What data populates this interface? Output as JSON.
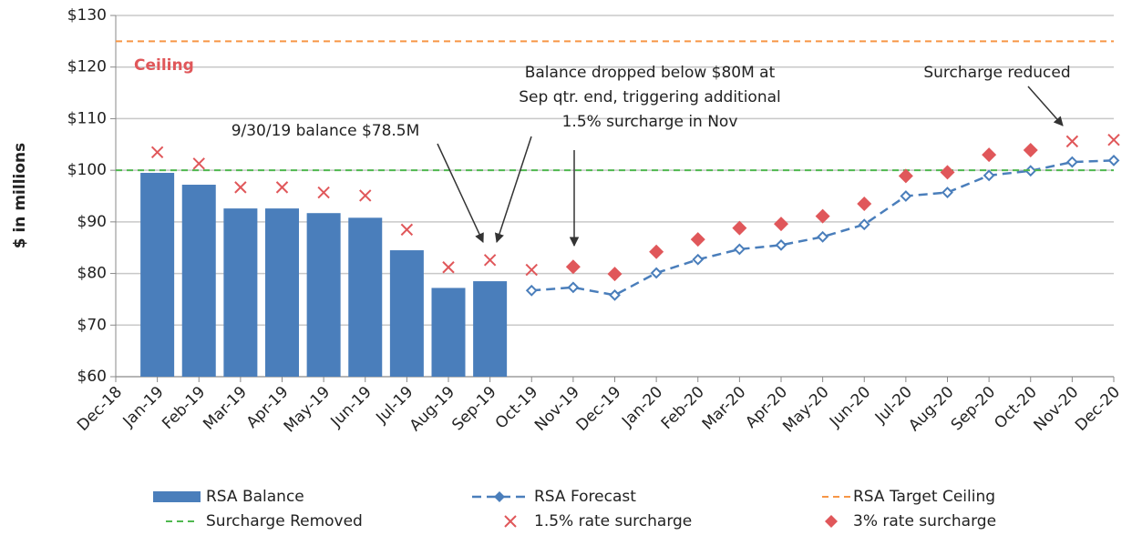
{
  "chart_data": {
    "type": "combo",
    "y_label": "$ in millions",
    "categories": [
      "Dec-18",
      "Jan-19",
      "Feb-19",
      "Mar-19",
      "Apr-19",
      "May-19",
      "Jun-19",
      "Jul-19",
      "Aug-19",
      "Sep-19",
      "Oct-19",
      "Nov-19",
      "Dec-19",
      "Jan-20",
      "Feb-20",
      "Mar-20",
      "Apr-20",
      "May-20",
      "Jun-20",
      "Jul-20",
      "Aug-20",
      "Sep-20",
      "Oct-20",
      "Nov-20",
      "Dec-20"
    ],
    "ylim": [
      60,
      130
    ],
    "yticks": [
      {
        "value": 60,
        "label": "$60"
      },
      {
        "value": 70,
        "label": "$70"
      },
      {
        "value": 80,
        "label": "$80"
      },
      {
        "value": 90,
        "label": "$90"
      },
      {
        "value": 100,
        "label": "$100"
      },
      {
        "value": 110,
        "label": "$110"
      },
      {
        "value": 120,
        "label": "$120"
      },
      {
        "value": 130,
        "label": "$130"
      }
    ],
    "grid": true,
    "series": [
      {
        "name": "RSA Balance",
        "kind": "bar",
        "color": "#4a7ebb",
        "values": [
          null,
          99.5,
          97.2,
          92.6,
          92.6,
          91.7,
          90.8,
          84.5,
          77.2,
          78.5,
          null,
          null,
          null,
          null,
          null,
          null,
          null,
          null,
          null,
          null,
          null,
          null,
          null,
          null,
          null
        ]
      },
      {
        "name": "RSA Forecast",
        "kind": "line",
        "color": "#4a7ebb",
        "values": [
          null,
          null,
          null,
          null,
          null,
          null,
          null,
          null,
          null,
          null,
          76.7,
          77.3,
          75.8,
          80.1,
          82.7,
          84.7,
          85.5,
          87.1,
          89.5,
          95.0,
          95.7,
          99.0,
          99.9,
          101.6,
          101.9
        ]
      },
      {
        "name": "RSA Target Ceiling",
        "kind": "hline",
        "color": "#f79646",
        "value": 125
      },
      {
        "name": "Surcharge Removed",
        "kind": "hline",
        "color": "#4fb84f",
        "value": 100
      },
      {
        "name": "1.5% rate surcharge",
        "kind": "cross",
        "color": "#e0575a",
        "values": [
          null,
          103.5,
          101.3,
          96.7,
          96.7,
          95.7,
          95.1,
          88.5,
          81.2,
          82.6,
          80.7,
          null,
          null,
          null,
          null,
          null,
          null,
          null,
          null,
          null,
          null,
          null,
          null,
          105.6,
          105.9
        ]
      },
      {
        "name": "3% rate surcharge",
        "kind": "diamond",
        "color": "#e0575a",
        "values": [
          null,
          null,
          null,
          null,
          null,
          null,
          null,
          null,
          null,
          null,
          null,
          81.3,
          79.9,
          84.2,
          86.6,
          88.8,
          89.6,
          91.1,
          93.5,
          98.9,
          99.6,
          103.0,
          103.9,
          null,
          null
        ]
      }
    ],
    "annotations": [
      {
        "lines": [
          "Ceiling"
        ]
      },
      {
        "lines": [
          "9/30/19 balance $78.5M"
        ]
      },
      {
        "lines": [
          "Balance dropped below $80M at",
          "Sep qtr. end, triggering additional",
          "1.5% surcharge in Nov"
        ]
      },
      {
        "lines": [
          "Surcharge reduced"
        ]
      }
    ]
  }
}
